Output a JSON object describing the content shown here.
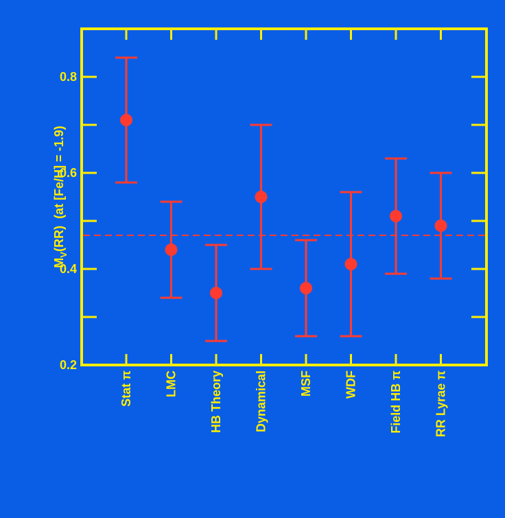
{
  "colors": {
    "background": "#0a5ee6",
    "axis": "#ffee00",
    "marker": "#ff3b2f",
    "reference_line": "#ff3b2f",
    "label": "#ffee00"
  },
  "chart_data": {
    "type": "scatter",
    "title": "",
    "ylabel": {
      "main": "M",
      "sub": "V",
      "rest": "(RR)  (at [Fe/H] = -1.9)"
    },
    "xlabel": "",
    "ylim": [
      0.2,
      0.9
    ],
    "yticks": [
      0.2,
      0.4,
      0.6,
      0.8
    ],
    "yticks_minor": [
      0.3,
      0.5,
      0.7
    ],
    "y_tick_labels": [
      "0.2",
      "0.4",
      "0.6",
      "0.8"
    ],
    "grid": false,
    "reference_line": {
      "y": 0.47,
      "style": "dashed"
    },
    "categories": [
      "Stat π",
      "LMC",
      "HB Theory",
      "Dynamical",
      "MSF",
      "WDF",
      "Field HB π",
      "RR Lyrae π"
    ],
    "points": [
      {
        "category": "Stat π",
        "value": 0.71,
        "low": 0.58,
        "high": 0.84
      },
      {
        "category": "LMC",
        "value": 0.44,
        "low": 0.34,
        "high": 0.54
      },
      {
        "category": "HB Theory",
        "value": 0.35,
        "low": 0.25,
        "high": 0.45
      },
      {
        "category": "Dynamical",
        "value": 0.55,
        "low": 0.4,
        "high": 0.7
      },
      {
        "category": "MSF",
        "value": 0.36,
        "low": 0.26,
        "high": 0.46
      },
      {
        "category": "WDF",
        "value": 0.41,
        "low": 0.26,
        "high": 0.56
      },
      {
        "category": "Field HB π",
        "value": 0.51,
        "low": 0.39,
        "high": 0.63
      },
      {
        "category": "RR Lyrae π",
        "value": 0.49,
        "low": 0.38,
        "high": 0.6
      }
    ]
  }
}
